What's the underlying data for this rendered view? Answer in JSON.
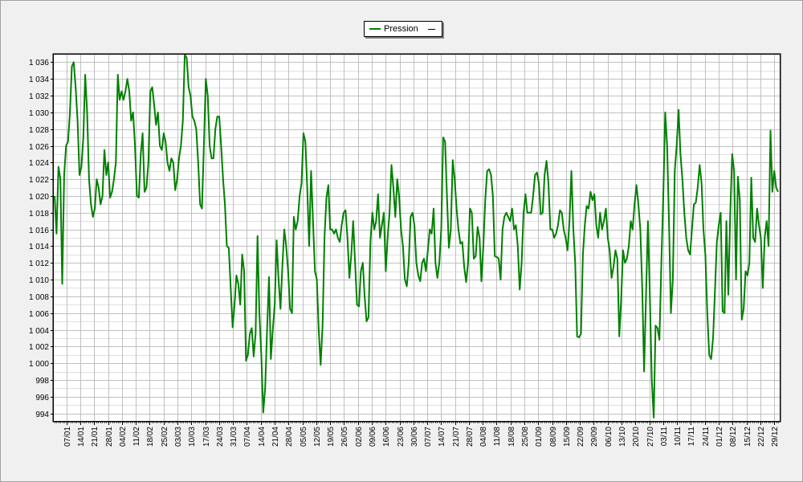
{
  "chart_data": {
    "type": "line",
    "series": [
      {
        "name": "Pression",
        "color": "#008000"
      }
    ],
    "legend": {
      "label": "Pression",
      "placement": "top-center"
    },
    "ylim": [
      993,
      1037
    ],
    "yticks": [
      994,
      996,
      998,
      1000,
      1002,
      1004,
      1006,
      1008,
      1010,
      1012,
      1014,
      1016,
      1018,
      1020,
      1022,
      1024,
      1026,
      1028,
      1030,
      1032,
      1034,
      1036
    ],
    "ytick_labels": [
      "994",
      "996",
      "998",
      "1 000",
      "1 002",
      "1 004",
      "1 006",
      "1 008",
      "1 010",
      "1 012",
      "1 014",
      "1 016",
      "1 018",
      "1 020",
      "1 022",
      "1 024",
      "1 026",
      "1 028",
      "1 030",
      "1 032",
      "1 034",
      "1 036"
    ],
    "xtick_labels": [
      "07/01",
      "14/01",
      "21/01",
      "28/01",
      "04/02",
      "11/02",
      "18/02",
      "25/02",
      "03/03",
      "10/03",
      "17/03",
      "24/03",
      "31/03",
      "07/04",
      "14/04",
      "21/04",
      "28/04",
      "05/05",
      "12/05",
      "19/05",
      "26/05",
      "02/06",
      "09/06",
      "16/06",
      "23/06",
      "30/06",
      "07/07",
      "14/07",
      "21/07",
      "28/07",
      "04/08",
      "11/08",
      "18/08",
      "25/08",
      "01/09",
      "08/09",
      "15/09",
      "22/09",
      "29/09",
      "06/10",
      "13/10",
      "20/10",
      "27/10",
      "03/11",
      "10/11",
      "17/11",
      "24/11",
      "01/12",
      "08/12",
      "15/12",
      "22/12",
      "29/12"
    ],
    "grid": true,
    "x_days": 366,
    "values": [
      1020,
      1015.5,
      1023.5,
      1022,
      1009.5,
      1022.5,
      1026,
      1026.5,
      1030,
      1035.5,
      1036,
      1033,
      1029,
      1022.5,
      1023.5,
      1027,
      1034.5,
      1030,
      1022,
      1019,
      1017.5,
      1018.5,
      1022,
      1021,
      1019,
      1020,
      1025.5,
      1022.5,
      1024,
      1019.8,
      1020.5,
      1022,
      1024,
      1034.5,
      1031.5,
      1032.5,
      1031.5,
      1032.5,
      1034,
      1032.5,
      1029,
      1030,
      1026,
      1020,
      1019.8,
      1025,
      1027.5,
      1020.5,
      1021,
      1024,
      1032.5,
      1033,
      1031,
      1028.5,
      1030,
      1026,
      1025.5,
      1027.5,
      1026.5,
      1024,
      1023,
      1024.5,
      1024,
      1020.7,
      1022,
      1024.5,
      1026,
      1029,
      1037.5,
      1036.5,
      1033,
      1032,
      1029.5,
      1029,
      1028,
      1024,
      1019,
      1018.5,
      1026,
      1034,
      1032,
      1026,
      1024.5,
      1024.5,
      1028,
      1029.5,
      1029.5,
      1026,
      1022,
      1019,
      1014,
      1013.8,
      1009,
      1004.3,
      1007,
      1010.5,
      1009.5,
      1007,
      1013,
      1011,
      1000.3,
      1001,
      1003.5,
      1004.2,
      1000.8,
      1003.5,
      1015.2,
      1006,
      1001,
      994.1,
      997,
      1004,
      1010.3,
      1000.5,
      1004,
      1007,
      1014.7,
      1010,
      1006.5,
      1011.5,
      1016,
      1014,
      1011,
      1006.5,
      1006,
      1017.5,
      1016,
      1017,
      1020,
      1021.5,
      1027.5,
      1026.5,
      1021,
      1014,
      1023,
      1017,
      1011,
      1010,
      1004,
      999.8,
      1004.5,
      1015,
      1019.8,
      1021.3,
      1016,
      1016,
      1015.5,
      1016,
      1015,
      1014.5,
      1016.5,
      1018,
      1018.3,
      1015,
      1010.2,
      1013,
      1017,
      1012,
      1007,
      1006.8,
      1011,
      1012,
      1008,
      1005,
      1005.5,
      1014.5,
      1018,
      1016,
      1017,
      1020.2,
      1015,
      1016.5,
      1018,
      1011,
      1015,
      1018,
      1023.7,
      1021,
      1017.5,
      1022,
      1020,
      1016,
      1014,
      1010,
      1009.2,
      1012,
      1017.5,
      1018,
      1016.5,
      1012,
      1010.5,
      1009.8,
      1012,
      1012.5,
      1011,
      1013.5,
      1016,
      1015.5,
      1018.5,
      1012,
      1010.2,
      1012,
      1016,
      1027,
      1026.5,
      1020,
      1013.8,
      1016,
      1024.3,
      1022,
      1018.5,
      1016,
      1014.3,
      1014.5,
      1011.5,
      1009.7,
      1012,
      1018.5,
      1018,
      1012.5,
      1012.8,
      1016.3,
      1015,
      1009.8,
      1014,
      1019.5,
      1023,
      1023.2,
      1022.5,
      1020,
      1012.8,
      1012.7,
      1012.5,
      1010,
      1016,
      1017.5,
      1018,
      1017.5,
      1017,
      1018.5,
      1016,
      1016.5,
      1014,
      1008.8,
      1012,
      1018,
      1020.2,
      1018,
      1018,
      1018,
      1020,
      1022.5,
      1022.8,
      1021.5,
      1017.8,
      1018,
      1022.5,
      1024.2,
      1021.5,
      1016,
      1016,
      1015,
      1015.5,
      1016.5,
      1018.3,
      1018,
      1016,
      1015,
      1013.5,
      1017,
      1023,
      1016,
      1012,
      1003.2,
      1003.1,
      1003.5,
      1013,
      1016.5,
      1018.8,
      1018.5,
      1020.5,
      1019.5,
      1020.2,
      1016.5,
      1015,
      1018,
      1016,
      1017,
      1018.5,
      1015,
      1013.5,
      1010.2,
      1011.5,
      1013.5,
      1012.5,
      1003.2,
      1007.5,
      1013.5,
      1012,
      1012.5,
      1014,
      1017,
      1016,
      1019,
      1021.3,
      1019,
      1016,
      1009,
      999,
      1008,
      1017,
      1008,
      998,
      993.5,
      1004.5,
      1004.2,
      1002.8,
      1012,
      1020,
      1030,
      1026,
      1017,
      1006,
      1010,
      1023,
      1026,
      1030.3,
      1025,
      1022,
      1018,
      1015,
      1013.5,
      1013,
      1016,
      1019,
      1019.2,
      1021,
      1023.7,
      1021.5,
      1016,
      1013,
      1006,
      1001,
      1000.5,
      1003,
      1008.5,
      1014.5,
      1016.5,
      1018,
      1006.2,
      1006,
      1017,
      1008.2,
      1018,
      1025,
      1023,
      1010,
      1022.3,
      1019.5,
      1005.2,
      1006.5,
      1011,
      1010.5,
      1012,
      1022.2,
      1015,
      1014.5,
      1018.5,
      1016.5,
      1015,
      1009,
      1015,
      1017,
      1014,
      1027.8,
      1020.5,
      1023,
      1021,
      1020.5
    ]
  }
}
